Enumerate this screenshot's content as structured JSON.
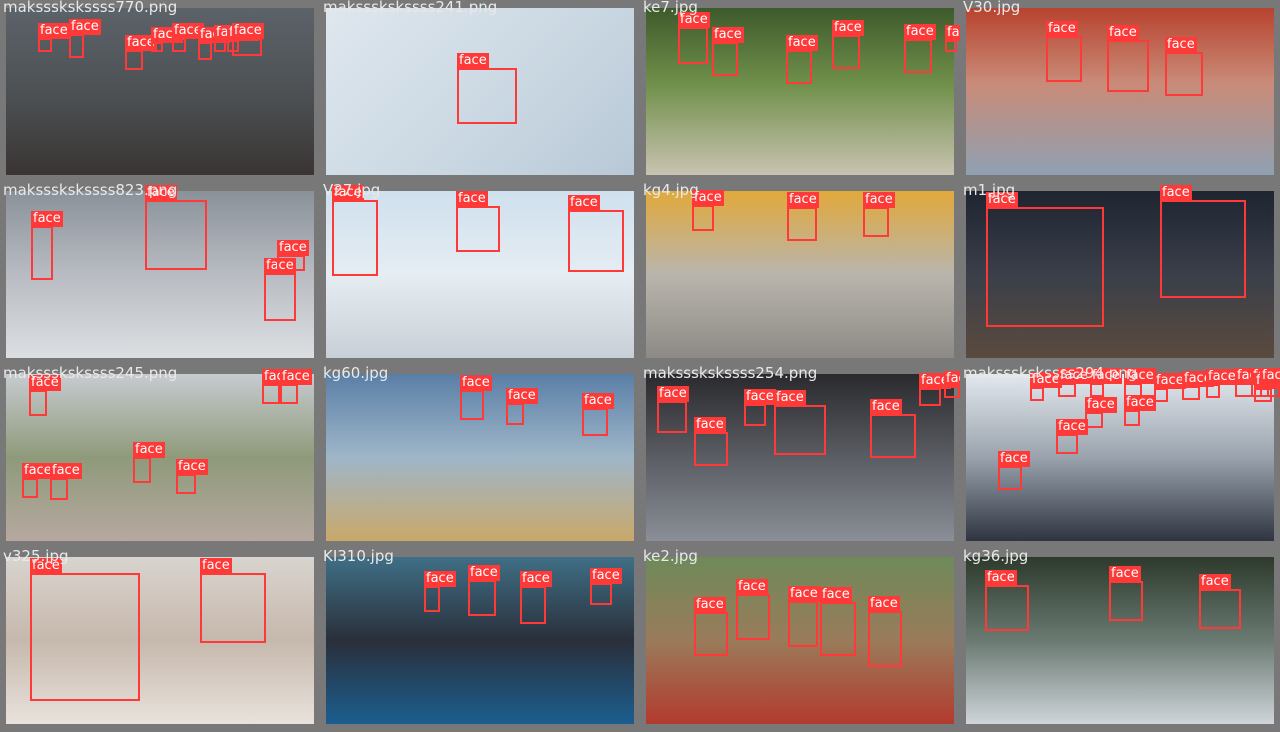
{
  "title": "Face detection results mosaic",
  "label_text": "face",
  "colors": {
    "box": "#ff3838",
    "label_bg": "#ff3838",
    "label_text": "#ffffff",
    "filename_text": "#e9e9e9",
    "background": "#777777"
  },
  "tiles": [
    {
      "filename": "makssskskssss770.png",
      "face_count": 9
    },
    {
      "filename": "makssskskssss241.png",
      "face_count": 1
    },
    {
      "filename": "ke7.jpg",
      "face_count": 6
    },
    {
      "filename": "V30.jpg",
      "face_count": 3
    },
    {
      "filename": "makssskskssss823.png",
      "face_count": 4
    },
    {
      "filename": "V27.jpg",
      "face_count": 3
    },
    {
      "filename": "kg4.jpg",
      "face_count": 3
    },
    {
      "filename": "m1.jpg",
      "face_count": 2
    },
    {
      "filename": "makssskskssss245.png",
      "face_count": 7
    },
    {
      "filename": "kg60.jpg",
      "face_count": 3
    },
    {
      "filename": "makssskskssss254.png",
      "face_count": 7
    },
    {
      "filename": "makssskskssss294.png",
      "face_count": 15
    },
    {
      "filename": "v325.jpg",
      "face_count": 2
    },
    {
      "filename": "KI310.jpg",
      "face_count": 4
    },
    {
      "filename": "ke2.jpg",
      "face_count": 5
    },
    {
      "filename": "kg36.jpg",
      "face_count": 3
    }
  ]
}
